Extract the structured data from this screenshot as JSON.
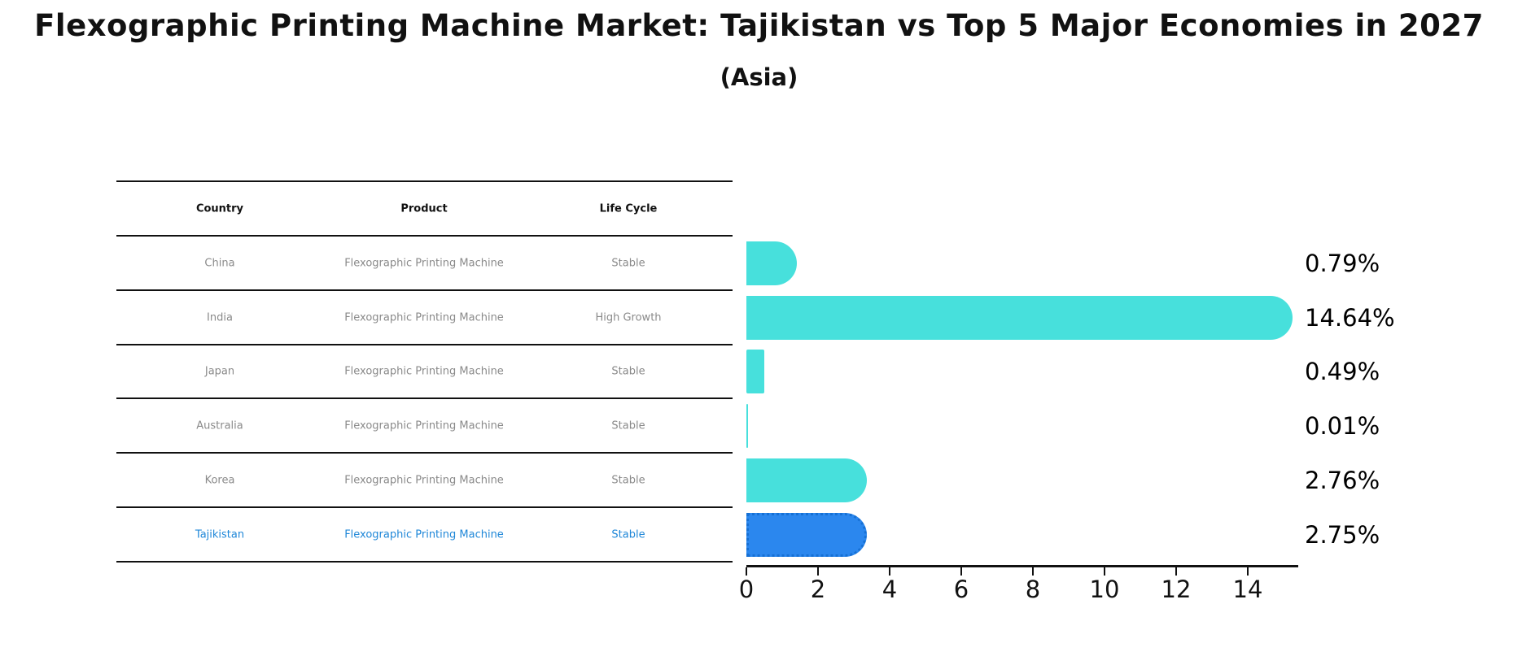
{
  "header": {
    "title": "Flexographic Printing Machine Market: Tajikistan vs Top 5 Major Economies in 2027",
    "subtitle": "(Asia)"
  },
  "table": {
    "headers": [
      "Country",
      "Product",
      "Life Cycle"
    ],
    "rows": [
      {
        "country": "China",
        "product": "Flexographic Printing Machine",
        "life_cycle": "Stable"
      },
      {
        "country": "India",
        "product": "Flexographic Printing Machine",
        "life_cycle": "High Growth"
      },
      {
        "country": "Japan",
        "product": "Flexographic Printing Machine",
        "life_cycle": "Stable"
      },
      {
        "country": "Australia",
        "product": "Flexographic Printing Machine",
        "life_cycle": "Stable"
      },
      {
        "country": "Korea",
        "product": "Flexographic Printing Machine",
        "life_cycle": "Stable"
      },
      {
        "country": "Tajikistan",
        "product": "Flexographic Printing Machine",
        "life_cycle": "Stable"
      }
    ]
  },
  "chart_data": {
    "type": "bar",
    "orientation": "horizontal",
    "title": "Flexographic Printing Machine Market: Tajikistan vs Top 5 Major Economies in 2027",
    "subtitle": "(Asia)",
    "categories": [
      "China",
      "India",
      "Japan",
      "Australia",
      "Korea",
      "Tajikistan"
    ],
    "values": [
      0.79,
      14.64,
      0.49,
      0.01,
      2.76,
      2.75
    ],
    "value_labels": [
      "0.79%",
      "14.64%",
      "0.49%",
      "0.01%",
      "2.76%",
      "2.75%"
    ],
    "highlight_index": 5,
    "x_ticks": [
      0,
      2,
      4,
      6,
      8,
      10,
      12,
      14
    ],
    "xlim": [
      0,
      15.4
    ],
    "grid": false,
    "legend": false
  },
  "colors": {
    "bar": "#47E0DC",
    "highlight_bar": "#2B87EE",
    "highlight_bar_edge": "#1670D4",
    "highlight_text": "#1f87d8",
    "text": "#111111",
    "muted_text": "#8a8a8a"
  }
}
